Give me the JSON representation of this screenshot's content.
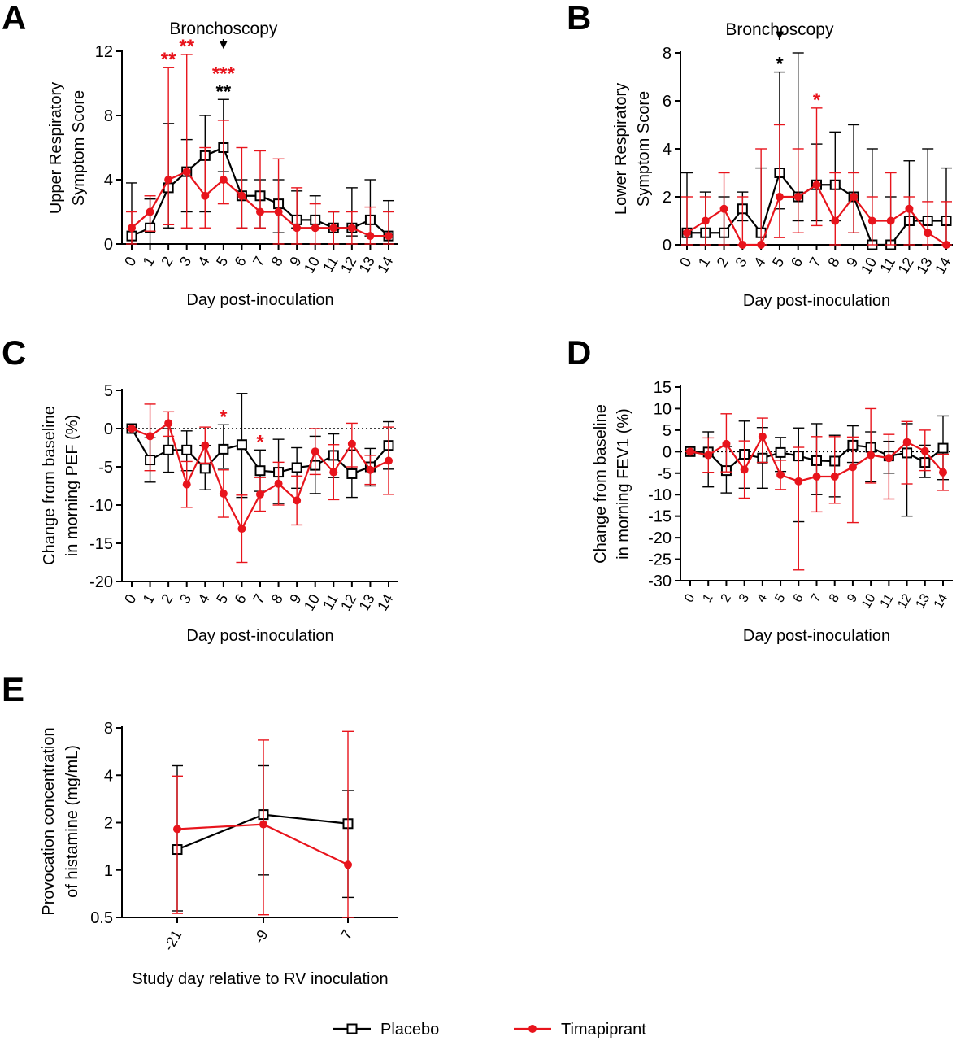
{
  "colors": {
    "placebo": "#000000",
    "timapiprant": "#e8141c"
  },
  "legend": [
    {
      "label": "Placebo",
      "marker": "open-square",
      "color": "#000000"
    },
    {
      "label": "Timapiprant",
      "marker": "filled-circle",
      "color": "#e8141c"
    }
  ],
  "chart_data": [
    {
      "panel": "A",
      "type": "line",
      "xlabel": "Day post-inoculation",
      "ylabel": [
        "Upper Respiratory",
        "Symptom Score"
      ],
      "ylim": [
        0,
        12
      ],
      "yticks": [
        0,
        4,
        8,
        12
      ],
      "x": [
        0,
        1,
        2,
        3,
        4,
        5,
        6,
        7,
        8,
        9,
        10,
        11,
        12,
        13,
        14
      ],
      "xticklabels": [
        "0",
        "1",
        "2",
        "3",
        "4",
        "5",
        "6",
        "7",
        "8",
        "9",
        "10",
        "11",
        "12",
        "13",
        "14"
      ],
      "annotations": [
        {
          "text": "Bronchoscopy",
          "x": 5,
          "arrow": true
        }
      ],
      "series": [
        {
          "name": "Placebo",
          "values": [
            0.5,
            1,
            3.5,
            4.5,
            5.5,
            6,
            3,
            3,
            2.5,
            1.5,
            1.5,
            1,
            1,
            1.5,
            0.5
          ],
          "err_low": [
            0,
            0,
            1,
            2,
            2,
            4.5,
            1,
            1,
            0.7,
            1,
            1,
            0.9,
            0.5,
            0.5,
            0
          ],
          "err_high": [
            3.8,
            2.8,
            7.5,
            6.5,
            8,
            9,
            4,
            4,
            4,
            3.3,
            3,
            2,
            3.5,
            4,
            2.7
          ],
          "stars": [
            {
              "x": 5,
              "text": "**"
            }
          ]
        },
        {
          "name": "Timapiprant",
          "values": [
            1,
            2,
            4,
            4.5,
            3,
            4,
            3,
            2,
            2,
            1,
            1,
            1,
            1,
            0.5,
            0.5
          ],
          "err_low": [
            0,
            0.8,
            1.2,
            1,
            1,
            2.5,
            1,
            1,
            0,
            0,
            0,
            0,
            0,
            0,
            0
          ],
          "err_high": [
            2,
            3,
            11,
            11.8,
            6,
            7.7,
            6,
            5.8,
            5.3,
            3.5,
            2.5,
            2,
            2,
            2.3,
            2
          ],
          "stars": [
            {
              "x": 2,
              "text": "**"
            },
            {
              "x": 3,
              "text": "**"
            },
            {
              "x": 5,
              "text": "***"
            }
          ]
        }
      ]
    },
    {
      "panel": "B",
      "type": "line",
      "xlabel": "Day post-inoculation",
      "ylabel": [
        "Lower Respiratory",
        "Symptom Score"
      ],
      "ylim": [
        0,
        8
      ],
      "yticks": [
        0,
        2,
        4,
        6,
        8
      ],
      "x": [
        0,
        1,
        2,
        3,
        4,
        5,
        6,
        7,
        8,
        9,
        10,
        11,
        12,
        13,
        14
      ],
      "xticklabels": [
        "0",
        "1",
        "2",
        "3",
        "4",
        "5",
        "6",
        "7",
        "8",
        "9",
        "10",
        "11",
        "12",
        "13",
        "14"
      ],
      "annotations": [
        {
          "text": "Bronchoscopy",
          "x": 5,
          "arrow": true
        }
      ],
      "series": [
        {
          "name": "Placebo",
          "values": [
            0.5,
            0.5,
            0.5,
            1.5,
            0.5,
            3,
            2,
            2.5,
            2.5,
            2,
            0,
            0,
            1,
            1,
            1
          ],
          "err_low": [
            0,
            0,
            0,
            1,
            0,
            1.5,
            1,
            1,
            1,
            0.5,
            0,
            0,
            0,
            0,
            0
          ],
          "err_high": [
            3,
            2.2,
            2,
            2.2,
            3.2,
            7.2,
            8,
            4.2,
            4.7,
            5,
            4,
            2,
            3.5,
            4,
            3.2
          ],
          "stars": [
            {
              "x": 5,
              "text": "*"
            }
          ]
        },
        {
          "name": "Timapiprant",
          "values": [
            0.5,
            1,
            1.5,
            0,
            0,
            2,
            2,
            2.5,
            1,
            2,
            1,
            1,
            1.5,
            0.5,
            0
          ],
          "err_low": [
            0,
            0,
            0,
            0,
            0,
            0.3,
            0.5,
            0.8,
            0,
            0.5,
            0,
            0,
            0,
            0,
            0
          ],
          "err_high": [
            2,
            2,
            3,
            2,
            4,
            5,
            4,
            5.7,
            3,
            3,
            2,
            3,
            2,
            1.8,
            1.8
          ],
          "stars": [
            {
              "x": 7,
              "text": "*"
            }
          ]
        }
      ]
    },
    {
      "panel": "C",
      "type": "line",
      "xlabel": "Day post-inoculation",
      "ylabel": [
        "Change from baseline",
        "in morning PEF (%)"
      ],
      "ylim": [
        -20,
        5
      ],
      "yticks": [
        -20,
        -15,
        -10,
        -5,
        0,
        5
      ],
      "x": [
        0,
        1,
        2,
        3,
        4,
        5,
        6,
        7,
        8,
        9,
        10,
        11,
        12,
        13,
        14
      ],
      "xticklabels": [
        "0",
        "1",
        "2",
        "3",
        "4",
        "5",
        "6",
        "7",
        "8",
        "9",
        "10",
        "11",
        "12",
        "13",
        "14"
      ],
      "reference_line": 0,
      "series": [
        {
          "name": "Placebo",
          "values": [
            0,
            -4.1,
            -2.8,
            -2.8,
            -5.2,
            -2.7,
            -2.1,
            -5.5,
            -5.7,
            -5.1,
            -4.8,
            -3.5,
            -5.9,
            -5,
            -2.2
          ],
          "err_low": [
            0,
            -7,
            -5.7,
            -5.5,
            -8,
            -5.2,
            -9,
            -8.2,
            -9.8,
            -7.8,
            -8.5,
            -6.4,
            -9,
            -7.5,
            -5.3
          ],
          "err_high": [
            0,
            -1.2,
            0,
            -0.3,
            -2.2,
            0.5,
            4.6,
            -2.8,
            -1.4,
            -2.5,
            -1,
            -0.7,
            -2.8,
            -2.6,
            0.9
          ],
          "stars": []
        },
        {
          "name": "Timapiprant",
          "values": [
            0,
            -1,
            0.7,
            -7.3,
            -2.2,
            -8.5,
            -13.1,
            -8.6,
            -7.2,
            -9.4,
            -3,
            -5.7,
            -2,
            -5.4,
            -4.2
          ],
          "err_low": [
            0,
            -5.5,
            -1,
            -10.3,
            -4.5,
            -11.6,
            -17.5,
            -10.8,
            -10,
            -12.6,
            -6,
            -9.3,
            -5,
            -7.3,
            -8.6
          ],
          "err_high": [
            0,
            3.2,
            2.2,
            -4.3,
            0.2,
            -5.4,
            -8.7,
            -6.4,
            -4.4,
            -6.2,
            0,
            -2.1,
            0.7,
            -3.5,
            0.2
          ],
          "stars": [
            {
              "x": 5,
              "text": "*"
            },
            {
              "x": 7,
              "text": "*"
            }
          ]
        }
      ]
    },
    {
      "panel": "D",
      "type": "line",
      "xlabel": "Day post-inoculation",
      "ylabel": [
        "Change from baseline",
        "in morning FEV1 (%)"
      ],
      "ylim": [
        -30,
        15
      ],
      "yticks": [
        -30,
        -25,
        -20,
        -15,
        -10,
        -5,
        0,
        5,
        10,
        15
      ],
      "x": [
        0,
        1,
        2,
        3,
        4,
        5,
        6,
        7,
        8,
        9,
        10,
        11,
        12,
        13,
        14
      ],
      "xticklabels": [
        "0",
        "1",
        "2",
        "3",
        "4",
        "5",
        "6",
        "7",
        "8",
        "9",
        "10",
        "11",
        "12",
        "13",
        "14"
      ],
      "reference_line": 0,
      "series": [
        {
          "name": "Placebo",
          "values": [
            0,
            -0.1,
            -4.4,
            -0.6,
            -1.5,
            -0.2,
            -1,
            -2.1,
            -2.2,
            1.5,
            1,
            -1,
            -0.3,
            -2.5,
            0.8
          ],
          "err_low": [
            0,
            -8.2,
            -9.6,
            -8.5,
            -8.5,
            -4.6,
            -16.3,
            -10,
            -10.5,
            -2.5,
            -7,
            -5,
            -15,
            -6,
            -6.5
          ],
          "err_high": [
            0,
            4.6,
            1.2,
            7.1,
            5.6,
            3.3,
            5.5,
            6.5,
            3.8,
            6,
            4.6,
            2.4,
            6.5,
            1.5,
            8.3
          ],
          "stars": []
        },
        {
          "name": "Timapiprant",
          "values": [
            0,
            -0.8,
            1.8,
            -4.2,
            3.5,
            -5.4,
            -6.9,
            -5.8,
            -5.8,
            -3.6,
            -0.8,
            -1.5,
            2.2,
            0.1,
            -4.8
          ],
          "err_low": [
            0,
            -4.8,
            -4.7,
            -10.8,
            -2.5,
            -8.8,
            -27.5,
            -14,
            -12,
            -16.5,
            -7.3,
            -11,
            -7.5,
            -4.4,
            -9
          ],
          "err_high": [
            0,
            3.2,
            8.8,
            2.5,
            7.8,
            -2,
            1,
            3.5,
            3.5,
            3.4,
            10,
            4,
            7,
            5,
            -0.6
          ],
          "stars": []
        }
      ]
    },
    {
      "panel": "E",
      "type": "line",
      "xlabel": "Study day relative to RV inoculation",
      "ylabel": [
        "Provocation concentration",
        "of histamine (mg/mL)"
      ],
      "yscale": "log2",
      "ylim": [
        0.5,
        8
      ],
      "yticks": [
        0.5,
        1,
        2,
        4,
        8
      ],
      "x": [
        -21,
        -9,
        7
      ],
      "xticklabels": [
        "-21",
        "-9",
        "7"
      ],
      "series": [
        {
          "name": "Placebo",
          "values": [
            1.35,
            2.25,
            1.97
          ],
          "err_low": [
            0.55,
            0.93,
            0.67
          ],
          "err_high": [
            4.6,
            4.6,
            3.2
          ],
          "stars": []
        },
        {
          "name": "Timapiprant",
          "values": [
            1.82,
            1.95,
            1.08
          ],
          "err_low": [
            0.53,
            0.52,
            0.5
          ],
          "err_high": [
            3.95,
            6.7,
            7.6
          ],
          "stars": []
        }
      ]
    }
  ]
}
